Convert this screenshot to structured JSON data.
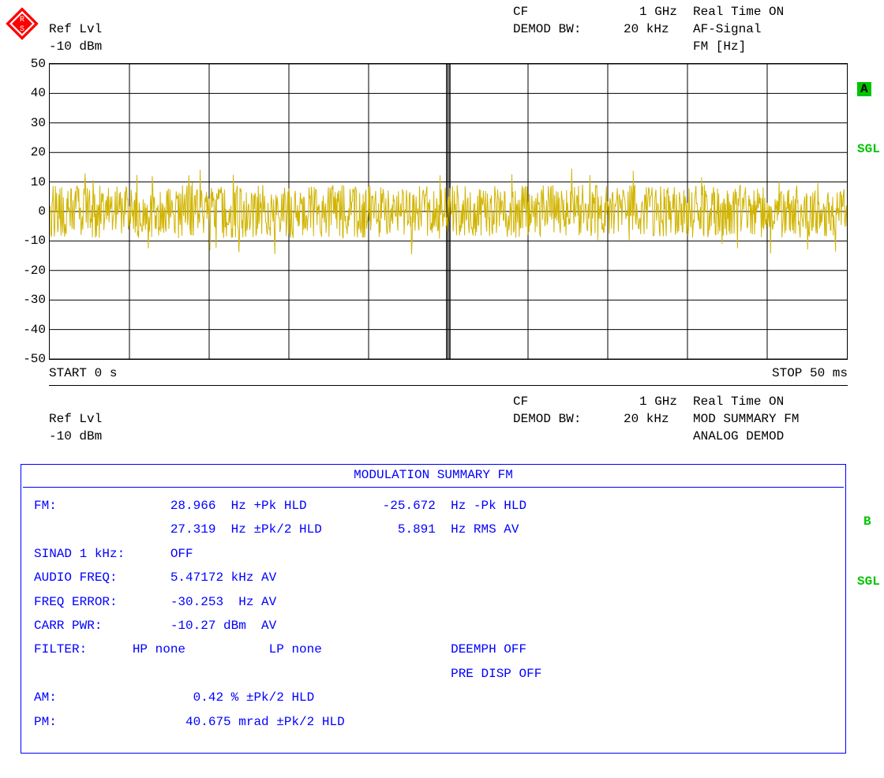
{
  "header_top": {
    "ref_lvl_label": "Ref Lvl",
    "ref_lvl_value": "-10 dBm",
    "cf_label": "CF",
    "cf_value": "1 GHz",
    "demod_bw_label": "DEMOD BW:",
    "demod_bw_value": "20 kHz",
    "real_time_label": "Real Time ON",
    "af_signal_label": "AF-Signal",
    "fm_unit_label": "FM [Hz]"
  },
  "chart": {
    "type": "line",
    "y_min": -50,
    "y_max": 50,
    "y_tick_step": 10,
    "y_ticks": [
      50,
      40,
      30,
      20,
      10,
      0,
      -10,
      -20,
      -30,
      -40,
      -50
    ],
    "x_start_label": "START 0 s",
    "x_stop_label": "STOP 50 ms",
    "grid_color": "#000000",
    "trace_color": "#d1b400",
    "background_color": "#ffffff",
    "noise_center": 0,
    "noise_peak": 15,
    "noise_typical": 10,
    "center_divider": true,
    "badge_a": "A",
    "sgl_label": "SGL"
  },
  "header_mid": {
    "ref_lvl_label": "Ref Lvl",
    "ref_lvl_value": "-10 dBm",
    "cf_label": "CF",
    "cf_value": "1 GHz",
    "demod_bw_label": "DEMOD BW:",
    "demod_bw_value": "20 kHz",
    "real_time_label": "Real Time ON",
    "mod_summary_label": "MOD SUMMARY FM",
    "analog_demod_label": "ANALOG DEMOD"
  },
  "summary": {
    "title": "MODULATION SUMMARY FM",
    "fm_label": "FM:",
    "fm_pk_pos": "28.966  Hz +Pk HLD",
    "fm_pk_neg": "-25.672  Hz -Pk HLD",
    "fm_pk2": "27.319  Hz ±Pk/2 HLD",
    "fm_rms": "5.891  Hz RMS AV",
    "sinad_label": "SINAD 1 kHz:",
    "sinad_value": "OFF",
    "audio_freq_label": "AUDIO FREQ:",
    "audio_freq_value": "5.47172 kHz AV",
    "freq_error_label": "FREQ ERROR:",
    "freq_error_value": "-30.253  Hz AV",
    "carr_pwr_label": "CARR PWR:",
    "carr_pwr_value": "-10.27 dBm  AV",
    "filter_label": "FILTER:",
    "filter_hp": "HP none",
    "filter_lp": "LP none",
    "deemph": "DEEMPH OFF",
    "pre_disp": "PRE DISP OFF",
    "am_label": "AM:",
    "am_value": "0.42 % ±Pk/2 HLD",
    "pm_label": "PM:",
    "pm_value": "40.675 mrad ±Pk/2 HLD",
    "badge_b": "B",
    "sgl_label": "SGL",
    "text_color": "#0000ff",
    "border_color": "#0000ff"
  },
  "colors": {
    "green": "#00c400",
    "blue": "#0000ff",
    "trace": "#d1b400",
    "black": "#000000",
    "white": "#ffffff"
  }
}
